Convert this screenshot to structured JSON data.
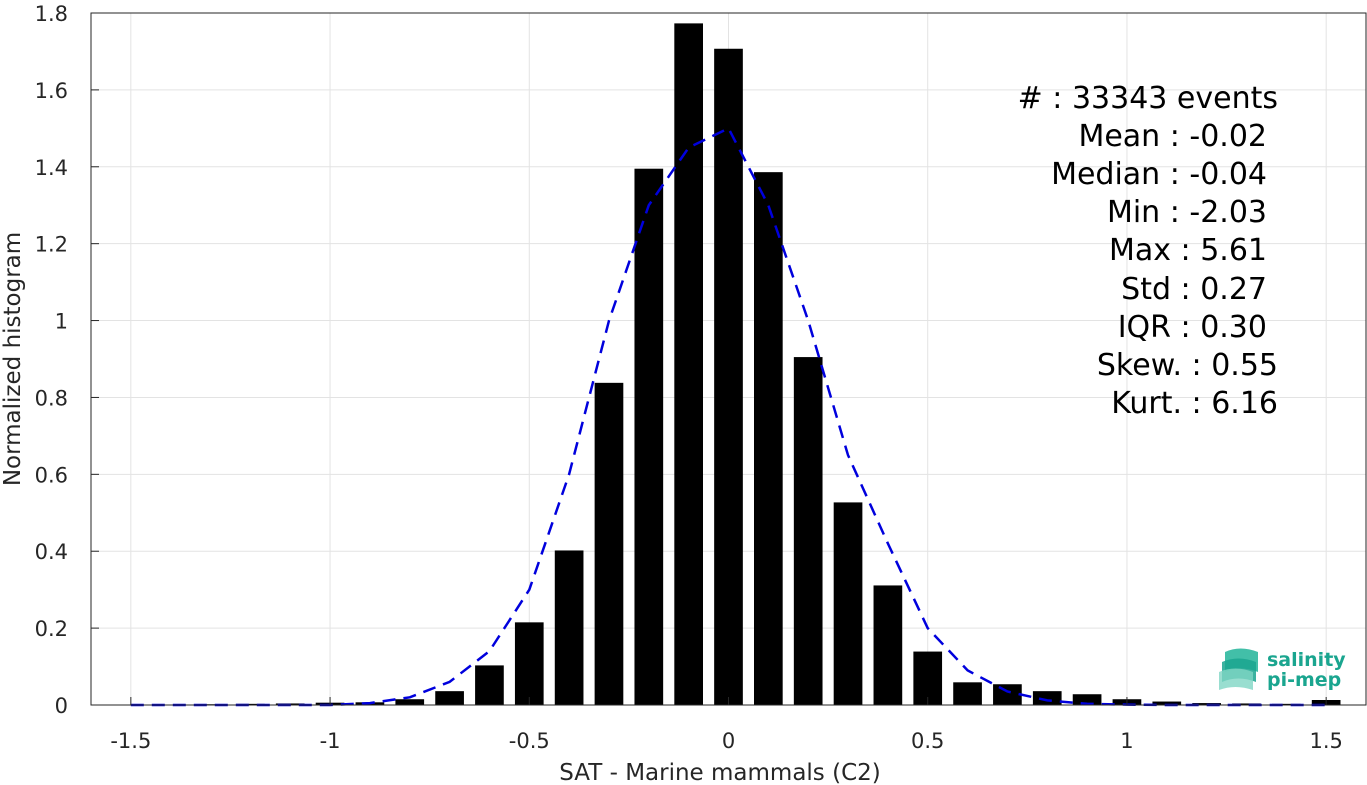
{
  "chart_data": {
    "type": "bar",
    "xlabel": "SAT - Marine mammals (C2)",
    "ylabel": "Normalized histogram",
    "xlim": [
      -1.6,
      1.6
    ],
    "ylim": [
      0,
      1.8
    ],
    "xticks": [
      -1.5,
      -1,
      -0.5,
      0,
      0.5,
      1,
      1.5
    ],
    "xtick_labels": [
      "-1.5",
      "-1",
      "-0.5",
      "0",
      "0.5",
      "1",
      "1.5"
    ],
    "yticks": [
      0,
      0.2,
      0.4,
      0.6,
      0.8,
      1,
      1.2,
      1.4,
      1.6,
      1.8
    ],
    "ytick_labels": [
      "0",
      "0.2",
      "0.4",
      "0.6",
      "0.8",
      "1",
      "1.2",
      "1.4",
      "1.6",
      "1.8"
    ],
    "grid": true,
    "bar_color": "#000000",
    "bars": {
      "x": [
        -1.5,
        -1.4,
        -1.3,
        -1.2,
        -1.1,
        -1.0,
        -0.9,
        -0.8,
        -0.7,
        -0.6,
        -0.5,
        -0.4,
        -0.3,
        -0.2,
        -0.1,
        0.0,
        0.1,
        0.2,
        0.3,
        0.4,
        0.5,
        0.6,
        0.7,
        0.8,
        0.9,
        1.0,
        1.1,
        1.2,
        1.3,
        1.4,
        1.5
      ],
      "values": [
        0.001,
        0.001,
        0.002,
        0.003,
        0.004,
        0.006,
        0.007,
        0.015,
        0.036,
        0.103,
        0.215,
        0.402,
        0.838,
        1.395,
        1.773,
        1.707,
        1.386,
        0.905,
        0.527,
        0.311,
        0.139,
        0.059,
        0.054,
        0.036,
        0.028,
        0.015,
        0.009,
        0.005,
        0.004,
        0.003,
        0.013
      ]
    },
    "fit": {
      "name": "",
      "color": "#0000dd",
      "style": "dashed",
      "x": [
        -1.5,
        -1.4,
        -1.3,
        -1.2,
        -1.1,
        -1.0,
        -0.9,
        -0.8,
        -0.7,
        -0.6,
        -0.5,
        -0.4,
        -0.3,
        -0.2,
        -0.1,
        0.0,
        0.1,
        0.2,
        0.3,
        0.4,
        0.5,
        0.6,
        0.7,
        0.8,
        0.9,
        1.0,
        1.1,
        1.2,
        1.3,
        1.4,
        1.5
      ],
      "values": [
        0.0,
        0.0,
        0.0,
        0.0,
        0.0,
        0.0,
        0.005,
        0.02,
        0.06,
        0.14,
        0.3,
        0.6,
        1.0,
        1.3,
        1.45,
        1.5,
        1.3,
        1.0,
        0.65,
        0.42,
        0.2,
        0.09,
        0.035,
        0.012,
        0.003,
        0.001,
        0.0,
        0.0,
        0.0,
        0.0,
        0.0
      ]
    }
  },
  "stats": [
    {
      "label": "#  : 33343 events"
    },
    {
      "label": "Mean : -0.02"
    },
    {
      "label": "Median : -0.04"
    },
    {
      "label": "Min : -2.03"
    },
    {
      "label": "Max : 5.61"
    },
    {
      "label": "Std : 0.27"
    },
    {
      "label": "IQR : 0.30"
    },
    {
      "label": "Skew. : 0.55"
    },
    {
      "label": "Kurt. : 6.16"
    }
  ],
  "logo": {
    "line1": "salinity",
    "line2": "pi-mep",
    "accent": "#1aa58f"
  }
}
